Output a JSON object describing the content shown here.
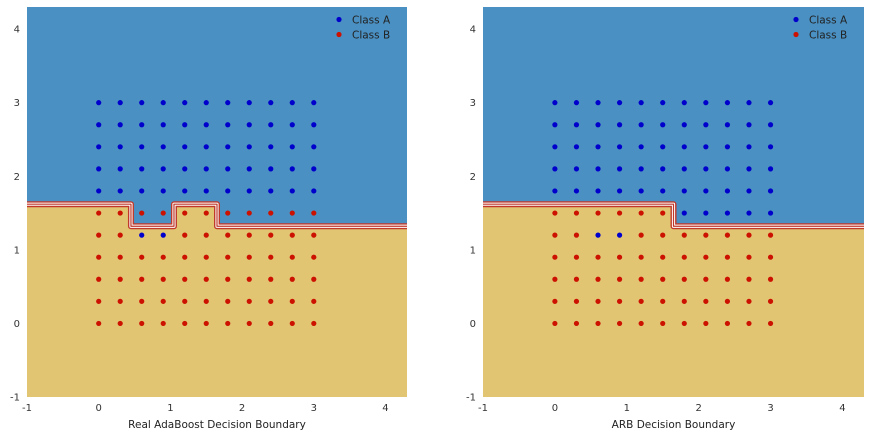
{
  "chart_data": [
    {
      "type": "scatter",
      "title": "",
      "xlabel": "Real AdaBoost Decision Boundary",
      "ylabel": "",
      "xlim": [
        -1,
        4.3
      ],
      "ylim": [
        -1,
        4.3
      ],
      "xticks": [
        "-1",
        "0",
        "1",
        "2",
        "3",
        "4"
      ],
      "yticks": [
        "-1",
        "0",
        "1",
        "2",
        "3",
        "4"
      ],
      "grid": false,
      "legend_position": "top-right",
      "region_colors": {
        "class_a": "#4a90c2",
        "class_b": "#e2c572"
      },
      "boundary_colors": [
        "#c0392b",
        "#ffffff"
      ],
      "boundary": [
        [
          -1,
          1.62
        ],
        [
          0.45,
          1.62
        ],
        [
          0.45,
          1.32
        ],
        [
          1.05,
          1.32
        ],
        [
          1.05,
          1.62
        ],
        [
          1.65,
          1.62
        ],
        [
          1.65,
          1.32
        ],
        [
          4.3,
          1.32
        ]
      ],
      "grid_x": [
        0,
        0.3,
        0.6,
        0.9,
        1.2,
        1.5,
        1.8,
        2.1,
        2.4,
        2.7,
        3.0
      ],
      "grid_y": [
        0,
        0.3,
        0.6,
        0.9,
        1.2,
        1.5,
        1.8,
        2.1,
        2.4,
        2.7,
        3.0
      ],
      "series": [
        {
          "name": "Class A",
          "color": "#0000cc",
          "rule": "y >= 1.8 or (y == 1.2 and x in [0.6, 0.9])"
        },
        {
          "name": "Class B",
          "color": "#cc1100",
          "rule": "otherwise"
        }
      ]
    },
    {
      "type": "scatter",
      "title": "",
      "xlabel": "ARB Decision Boundary",
      "ylabel": "",
      "xlim": [
        -1,
        4.3
      ],
      "ylim": [
        -1,
        4.3
      ],
      "xticks": [
        "-1",
        "0",
        "1",
        "2",
        "3",
        "4"
      ],
      "yticks": [
        "-1",
        "0",
        "1",
        "2",
        "3",
        "4"
      ],
      "grid": false,
      "legend_position": "top-right",
      "region_colors": {
        "class_a": "#4a90c2",
        "class_b": "#e2c572"
      },
      "boundary_colors": [
        "#c0392b",
        "#ffffff"
      ],
      "boundary": [
        [
          -1,
          1.62
        ],
        [
          1.65,
          1.62
        ],
        [
          1.65,
          1.32
        ],
        [
          4.3,
          1.32
        ]
      ],
      "grid_x": [
        0,
        0.3,
        0.6,
        0.9,
        1.2,
        1.5,
        1.8,
        2.1,
        2.4,
        2.7,
        3.0
      ],
      "grid_y": [
        0,
        0.3,
        0.6,
        0.9,
        1.2,
        1.5,
        1.8,
        2.1,
        2.4,
        2.7,
        3.0
      ],
      "series": [
        {
          "name": "Class A",
          "color": "#0000cc",
          "rule": "y >= 1.8 or (y == 1.5 and x >= 1.8) or (y == 1.2 and x in [0.6, 0.9])"
        },
        {
          "name": "Class B",
          "color": "#cc1100",
          "rule": "otherwise"
        }
      ]
    }
  ]
}
